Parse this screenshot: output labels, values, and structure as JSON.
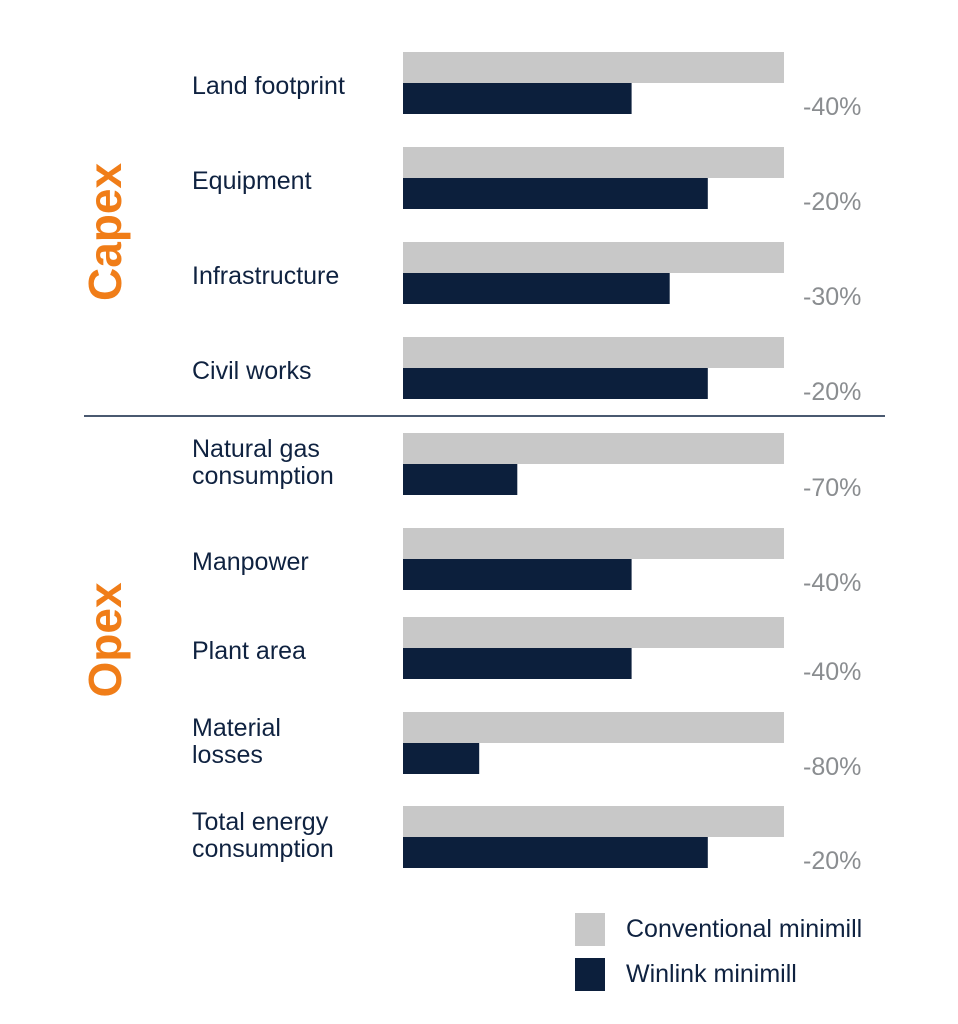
{
  "chart_data": {
    "type": "bar",
    "orientation": "horizontal",
    "title": "",
    "xlabel": "",
    "ylabel": "",
    "xlim": [
      0,
      100
    ],
    "grid": false,
    "legend_position": "bottom-right",
    "groups": [
      {
        "name": "Capex",
        "color": "#f07d18",
        "categories": [
          {
            "label": [
              "Land footprint"
            ],
            "conventional": 100,
            "winlink": 60,
            "change": "-40%"
          },
          {
            "label": [
              "Equipment"
            ],
            "conventional": 100,
            "winlink": 80,
            "change": "-20%"
          },
          {
            "label": [
              "Infrastructure"
            ],
            "conventional": 100,
            "winlink": 70,
            "change": "-30%"
          },
          {
            "label": [
              "Civil works"
            ],
            "conventional": 100,
            "winlink": 80,
            "change": "-20%"
          }
        ]
      },
      {
        "name": "Opex",
        "color": "#f07d18",
        "categories": [
          {
            "label": [
              "Natural gas",
              "consumption"
            ],
            "conventional": 100,
            "winlink": 30,
            "change": "-70%"
          },
          {
            "label": [
              "Manpower"
            ],
            "conventional": 100,
            "winlink": 60,
            "change": "-40%"
          },
          {
            "label": [
              "Plant area"
            ],
            "conventional": 100,
            "winlink": 60,
            "change": "-40%"
          },
          {
            "label": [
              "Material",
              "losses"
            ],
            "conventional": 100,
            "winlink": 20,
            "change": "-80%"
          },
          {
            "label": [
              "Total energy",
              "consumption"
            ],
            "conventional": 100,
            "winlink": 80,
            "change": "-20%"
          }
        ]
      }
    ],
    "series": [
      {
        "name": "Conventional minimill",
        "key": "conventional",
        "color": "#c8c8c8"
      },
      {
        "name": "Winlink minimill",
        "key": "winlink",
        "color": "#0c1f3c"
      }
    ]
  },
  "colors": {
    "divider": "#0f2240",
    "category_text": "#0f2240",
    "percent_text": "#8a8d90"
  }
}
